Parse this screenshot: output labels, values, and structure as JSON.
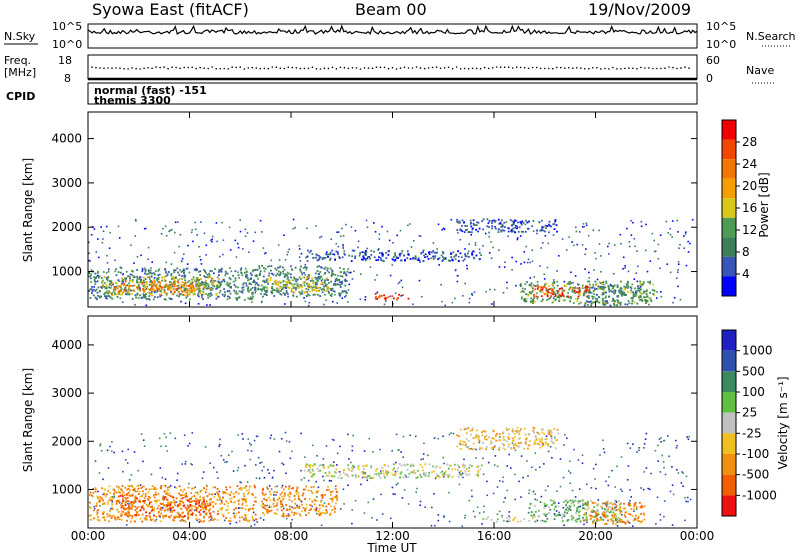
{
  "header": {
    "station": "Syowa East (fitACF)",
    "beam": "Beam 00",
    "date": "19/Nov/2009"
  },
  "noise_panel": {
    "left_label": "N.Sky",
    "right_label": "N.Search",
    "tick_top": "10^5",
    "tick_bottom": "10^0"
  },
  "freq_panel": {
    "left_label_1": "Freq.",
    "left_label_2": "[MHz]",
    "right_label": "Nave",
    "left_ticks": [
      "18",
      "8"
    ],
    "right_ticks": [
      "60",
      "0"
    ]
  },
  "cpid_panel": {
    "label": "CPID",
    "line1": "normal (fast) -151",
    "line2": "themis 3300"
  },
  "colors": {
    "power_scale": [
      "#0000ff",
      "#3a55b8",
      "#3b7f5a",
      "#4d9b54",
      "#d8c81a",
      "#f5a000",
      "#f07800",
      "#f04800",
      "#f00000"
    ],
    "velocity_scale": [
      "#2020c0",
      "#3050b0",
      "#3c8a60",
      "#60c040",
      "#c0c0c0",
      "#f0c020",
      "#f09010",
      "#f06000",
      "#f01010"
    ]
  },
  "chart_data": [
    {
      "type": "heatmap",
      "variable": "power",
      "xlabel": "Time UT",
      "ylabel": "Slant Range [km]",
      "x_ticks": [
        "00:00",
        "04:00",
        "08:00",
        "12:00",
        "16:00",
        "20:00",
        "00:00"
      ],
      "x_range_hours": [
        0,
        24
      ],
      "ylim": [
        200,
        4600
      ],
      "y_ticks": [
        1000,
        2000,
        3000,
        4000
      ],
      "colorbar_label": "Power [dB]",
      "colorbar_range": [
        0,
        32
      ],
      "colorbar_ticks": [
        4,
        8,
        12,
        16,
        20,
        24,
        28
      ],
      "regions": [
        {
          "t0": 0.0,
          "t1": 6.6,
          "r0": 380,
          "r1": 1100,
          "level": 2
        },
        {
          "t0": 0.5,
          "t1": 5.2,
          "r0": 480,
          "r1": 900,
          "level": 4
        },
        {
          "t0": 1.0,
          "t1": 4.5,
          "r0": 550,
          "r1": 800,
          "level": 6
        },
        {
          "t0": 6.5,
          "t1": 10.3,
          "r0": 450,
          "r1": 1150,
          "level": 2
        },
        {
          "t0": 7.0,
          "t1": 9.5,
          "r0": 550,
          "r1": 900,
          "level": 4
        },
        {
          "t0": 8.5,
          "t1": 15.5,
          "r0": 1250,
          "r1": 1500,
          "level": 1
        },
        {
          "t0": 11.2,
          "t1": 12.6,
          "r0": 380,
          "r1": 520,
          "level": 7
        },
        {
          "t0": 14.5,
          "t1": 18.5,
          "r0": 1900,
          "r1": 2200,
          "level": 1
        },
        {
          "t0": 17.0,
          "t1": 22.3,
          "r0": 300,
          "r1": 800,
          "level": 3
        },
        {
          "t0": 17.5,
          "t1": 19.8,
          "r0": 450,
          "r1": 700,
          "level": 7
        },
        {
          "t0": 19.5,
          "t1": 22.0,
          "r0": 250,
          "r1": 700,
          "level": 2
        }
      ]
    },
    {
      "type": "heatmap",
      "variable": "velocity",
      "xlabel": "Time UT",
      "ylabel": "Slant Range [km]",
      "x_ticks": [
        "00:00",
        "04:00",
        "08:00",
        "12:00",
        "16:00",
        "20:00",
        "00:00"
      ],
      "x_range_hours": [
        0,
        24
      ],
      "ylim": [
        200,
        4600
      ],
      "y_ticks": [
        1000,
        2000,
        3000,
        4000
      ],
      "colorbar_label": "Velocity [m s⁻¹]",
      "colorbar_ticks": [
        "1000",
        "500",
        "100",
        "25",
        "-25",
        "-100",
        "-500",
        "-1000"
      ],
      "regions": [
        {
          "t0": 0.0,
          "t1": 6.6,
          "r0": 350,
          "r1": 1100,
          "level": 6
        },
        {
          "t0": 1.2,
          "t1": 4.8,
          "r0": 450,
          "r1": 900,
          "level": 7
        },
        {
          "t0": 6.8,
          "t1": 9.8,
          "r0": 450,
          "r1": 1100,
          "level": 6
        },
        {
          "t0": 8.5,
          "t1": 15.5,
          "r0": 1250,
          "r1": 1550,
          "level": 4
        },
        {
          "t0": 14.5,
          "t1": 18.5,
          "r0": 1850,
          "r1": 2300,
          "level": 5
        },
        {
          "t0": 15.5,
          "t1": 17.5,
          "r0": 350,
          "r1": 450,
          "level": 4
        },
        {
          "t0": 17.3,
          "t1": 21.0,
          "r0": 350,
          "r1": 800,
          "level": 3
        },
        {
          "t0": 19.5,
          "t1": 22.0,
          "r0": 300,
          "r1": 750,
          "level": 6
        }
      ]
    }
  ]
}
